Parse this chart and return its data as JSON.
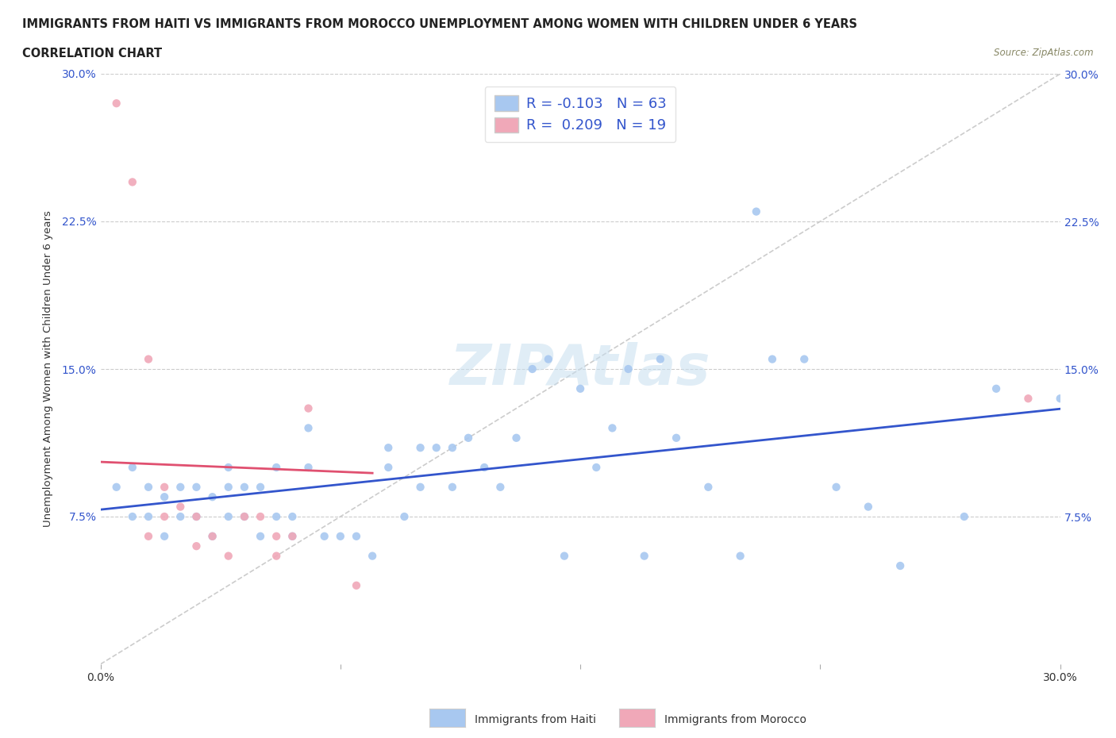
{
  "title_line1": "IMMIGRANTS FROM HAITI VS IMMIGRANTS FROM MOROCCO UNEMPLOYMENT AMONG WOMEN WITH CHILDREN UNDER 6 YEARS",
  "title_line2": "CORRELATION CHART",
  "source": "Source: ZipAtlas.com",
  "ylabel": "Unemployment Among Women with Children Under 6 years",
  "xlim": [
    0.0,
    0.3
  ],
  "ylim": [
    0.0,
    0.3
  ],
  "haiti_color": "#a8c8f0",
  "morocco_color": "#f0a8b8",
  "haiti_r": -0.103,
  "haiti_n": 63,
  "morocco_r": 0.209,
  "morocco_n": 19,
  "haiti_line_color": "#3355cc",
  "morocco_line_color": "#e05070",
  "background_color": "#ffffff",
  "tick_color": "#3355cc",
  "haiti_x": [
    0.005,
    0.01,
    0.01,
    0.015,
    0.015,
    0.02,
    0.02,
    0.025,
    0.025,
    0.03,
    0.03,
    0.035,
    0.035,
    0.04,
    0.04,
    0.04,
    0.045,
    0.045,
    0.05,
    0.05,
    0.055,
    0.055,
    0.06,
    0.06,
    0.065,
    0.065,
    0.07,
    0.075,
    0.08,
    0.085,
    0.09,
    0.09,
    0.095,
    0.1,
    0.1,
    0.105,
    0.11,
    0.11,
    0.115,
    0.12,
    0.125,
    0.13,
    0.135,
    0.14,
    0.145,
    0.15,
    0.155,
    0.16,
    0.165,
    0.17,
    0.175,
    0.18,
    0.19,
    0.2,
    0.205,
    0.21,
    0.22,
    0.23,
    0.24,
    0.25,
    0.27,
    0.28,
    0.3
  ],
  "haiti_y": [
    0.09,
    0.1,
    0.075,
    0.09,
    0.075,
    0.085,
    0.065,
    0.09,
    0.075,
    0.09,
    0.075,
    0.085,
    0.065,
    0.1,
    0.09,
    0.075,
    0.09,
    0.075,
    0.065,
    0.09,
    0.075,
    0.1,
    0.065,
    0.075,
    0.1,
    0.12,
    0.065,
    0.065,
    0.065,
    0.055,
    0.1,
    0.11,
    0.075,
    0.11,
    0.09,
    0.11,
    0.09,
    0.11,
    0.115,
    0.1,
    0.09,
    0.115,
    0.15,
    0.155,
    0.055,
    0.14,
    0.1,
    0.12,
    0.15,
    0.055,
    0.155,
    0.115,
    0.09,
    0.055,
    0.23,
    0.155,
    0.155,
    0.09,
    0.08,
    0.05,
    0.075,
    0.14,
    0.135
  ],
  "morocco_x": [
    0.005,
    0.01,
    0.015,
    0.015,
    0.02,
    0.02,
    0.025,
    0.03,
    0.03,
    0.035,
    0.04,
    0.045,
    0.05,
    0.055,
    0.055,
    0.06,
    0.065,
    0.08,
    0.29
  ],
  "morocco_y": [
    0.285,
    0.245,
    0.155,
    0.065,
    0.075,
    0.09,
    0.08,
    0.075,
    0.06,
    0.065,
    0.055,
    0.075,
    0.075,
    0.065,
    0.055,
    0.065,
    0.13,
    0.04,
    0.135
  ]
}
